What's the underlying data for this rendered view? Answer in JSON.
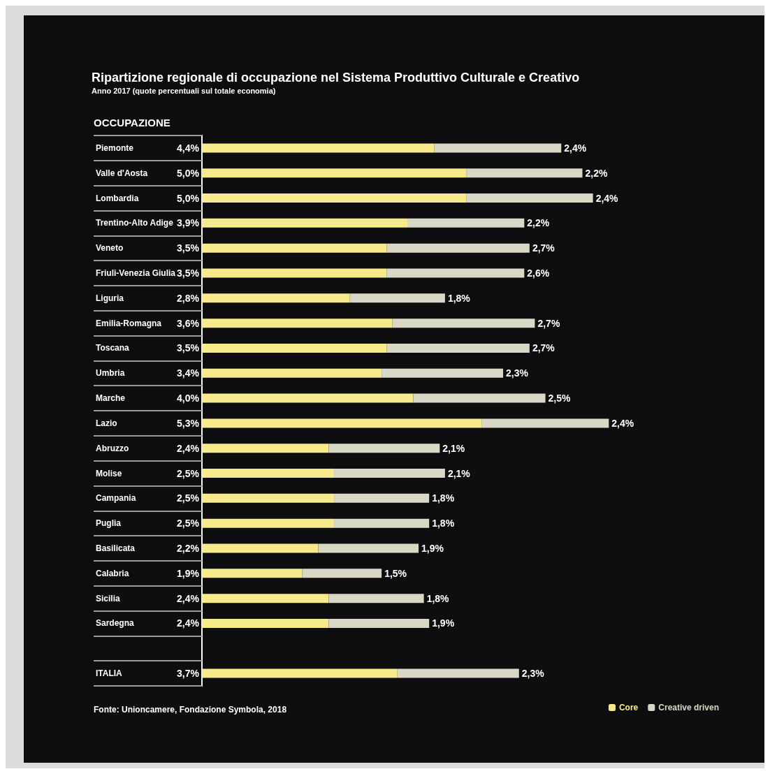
{
  "chart_data": {
    "type": "bar",
    "orientation": "horizontal",
    "stacked": true,
    "title": "Ripartizione regionale di occupazione nel Sistema Produttivo Culturale e Creativo",
    "subtitle": "Anno 2017 (quote percentuali sul totale economia)",
    "ylabel": "OCCUPAZIONE",
    "categories": [
      "Piemonte",
      "Valle d'Aosta",
      "Lombardia",
      "Trentino-Alto Adige",
      "Veneto",
      "Friuli-Venezia Giulia",
      "Liguria",
      "Emilia-Romagna",
      "Toscana",
      "Umbria",
      "Marche",
      "Lazio",
      "Abruzzo",
      "Molise",
      "Campania",
      "Puglia",
      "Basilicata",
      "Calabria",
      "Sicilia",
      "Sardegna",
      null,
      "ITALIA"
    ],
    "series": [
      {
        "name": "Core",
        "color": "#f6ea8c",
        "values": [
          4.4,
          5.0,
          5.0,
          3.9,
          3.5,
          3.5,
          2.8,
          3.6,
          3.5,
          3.4,
          4.0,
          5.3,
          2.4,
          2.5,
          2.5,
          2.5,
          2.2,
          1.9,
          2.4,
          2.4,
          null,
          3.7
        ],
        "value_labels": [
          "4,4%",
          "5,0%",
          "5,0%",
          "3,9%",
          "3,5%",
          "3,5%",
          "2,8%",
          "3,6%",
          "3,5%",
          "3,4%",
          "4,0%",
          "5,3%",
          "2,4%",
          "2,5%",
          "2,5%",
          "2,5%",
          "2,2%",
          "1,9%",
          "2,4%",
          "2,4%",
          null,
          "3,7%"
        ]
      },
      {
        "name": "Creative driven",
        "color": "#d9d7c5",
        "values": [
          2.4,
          2.2,
          2.4,
          2.2,
          2.7,
          2.6,
          1.8,
          2.7,
          2.7,
          2.3,
          2.5,
          2.4,
          2.1,
          2.1,
          1.8,
          1.8,
          1.9,
          1.5,
          1.8,
          1.9,
          null,
          2.3
        ],
        "value_labels": [
          "2,4%",
          "2,2%",
          "2,4%",
          "2,2%",
          "2,7%",
          "2,6%",
          "1,8%",
          "2,7%",
          "2,7%",
          "2,3%",
          "2,5%",
          "2,4%",
          "2,1%",
          "2,1%",
          "1,8%",
          "1,8%",
          "1,9%",
          "1,5%",
          "1,8%",
          "1,9%",
          null,
          "2,3%"
        ]
      }
    ],
    "legend": "bottom right",
    "grid": false,
    "annotations": [
      "Fonte: Unioncamere, Fondazione Symbola, 2018"
    ]
  }
}
